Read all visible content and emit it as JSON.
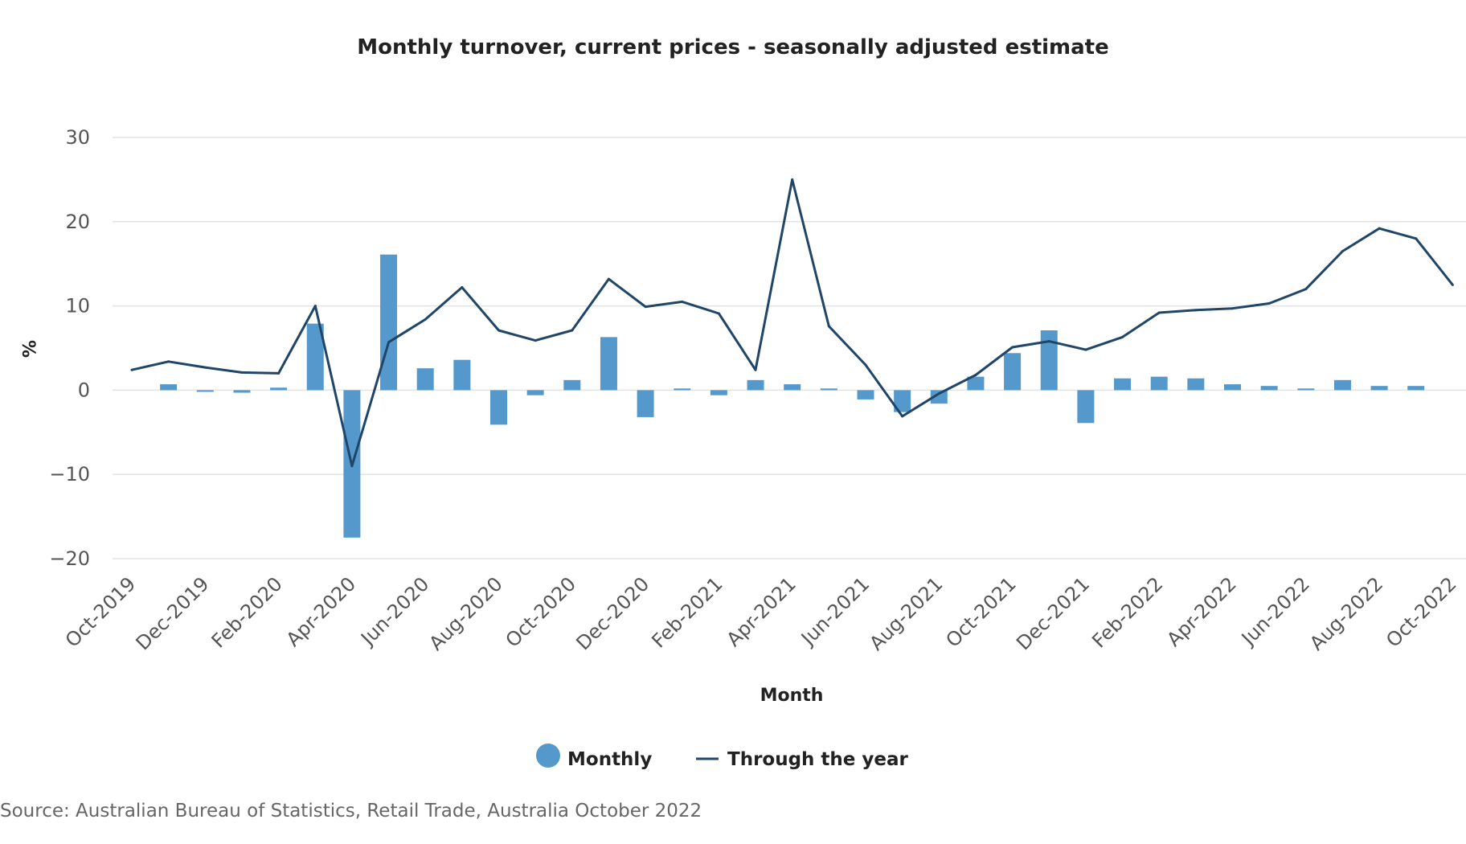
{
  "chart_data": {
    "type": "bar",
    "title": "Monthly turnover, current prices - seasonally adjusted estimate",
    "xlabel": "Month",
    "ylabel": "%",
    "ylim": [
      -20,
      30
    ],
    "yticks": [
      30,
      20,
      10,
      0,
      -10,
      -20
    ],
    "ytick_labels": [
      "30",
      "20",
      "10",
      "0",
      "−10",
      "−20"
    ],
    "grid": true,
    "legend_position": "bottom-center",
    "categories": [
      "Oct-2019",
      "Nov-2019",
      "Dec-2019",
      "Jan-2020",
      "Feb-2020",
      "Mar-2020",
      "Apr-2020",
      "May-2020",
      "Jun-2020",
      "Jul-2020",
      "Aug-2020",
      "Sep-2020",
      "Oct-2020",
      "Nov-2020",
      "Dec-2020",
      "Jan-2021",
      "Feb-2021",
      "Mar-2021",
      "Apr-2021",
      "May-2021",
      "Jun-2021",
      "Jul-2021",
      "Aug-2021",
      "Sep-2021",
      "Oct-2021",
      "Nov-2021",
      "Dec-2021",
      "Jan-2022",
      "Feb-2022",
      "Mar-2022",
      "Apr-2022",
      "May-2022",
      "Jun-2022",
      "Jul-2022",
      "Aug-2022",
      "Sep-2022",
      "Oct-2022"
    ],
    "x_tick_labels": [
      "Oct-2019",
      "Dec-2019",
      "Feb-2020",
      "Apr-2020",
      "Jun-2020",
      "Aug-2020",
      "Oct-2020",
      "Dec-2020",
      "Feb-2021",
      "Apr-2021",
      "Jun-2021",
      "Aug-2021",
      "Oct-2021",
      "Dec-2021",
      "Feb-2022",
      "Apr-2022",
      "Jun-2022",
      "Aug-2022",
      "Oct-2022"
    ],
    "series": [
      {
        "name": "Monthly",
        "type": "bar",
        "color": "#5599cc",
        "values": [
          0,
          0.7,
          -0.2,
          -0.3,
          0.3,
          7.9,
          -17.5,
          16.1,
          2.6,
          3.6,
          -4.1,
          -0.6,
          1.2,
          6.3,
          -3.2,
          0.2,
          -0.6,
          1.2,
          0.7,
          0.2,
          -1.1,
          -2.6,
          -1.6,
          1.6,
          4.4,
          7.1,
          -3.9,
          1.4,
          1.6,
          1.4,
          0.7,
          0.5,
          0.2,
          1.2,
          0.5,
          0.5,
          0
        ]
      },
      {
        "name": "Through the year",
        "type": "line",
        "color": "#1f4569",
        "values": [
          2.4,
          3.4,
          2.7,
          2.1,
          2.0,
          10.0,
          -9.0,
          5.7,
          8.4,
          12.2,
          7.1,
          5.9,
          7.1,
          13.2,
          9.9,
          10.5,
          9.1,
          2.4,
          25.0,
          7.6,
          3.0,
          -3.1,
          -0.4,
          1.8,
          5.1,
          5.8,
          4.8,
          6.3,
          9.2,
          9.5,
          9.7,
          10.3,
          12.0,
          16.5,
          19.2,
          18.0,
          12.5
        ]
      }
    ]
  },
  "legend": {
    "monthly_label": "Monthly",
    "through_year_label": "Through the year"
  },
  "source": "Source: Australian Bureau of Statistics, Retail Trade, Australia October 2022"
}
